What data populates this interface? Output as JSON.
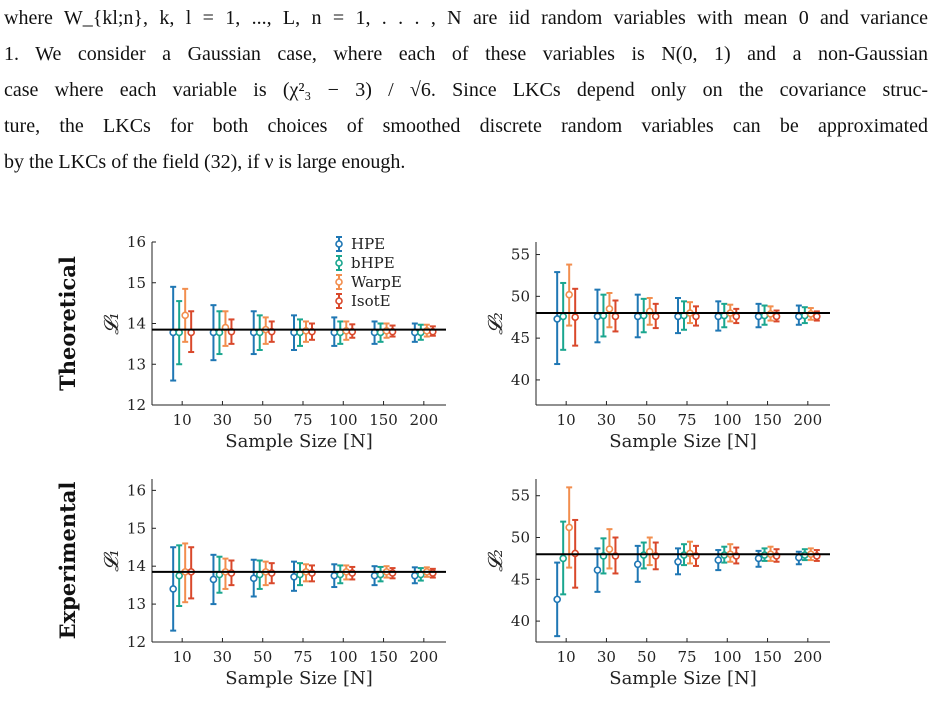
{
  "text": {
    "lines": [
      "where W_{kl;n}, k, l = 1, ..., L, n = 1, . . . , N are iid random variables with mean 0 and variance",
      "1. We consider a Gaussian case, where each of these variables is N(0, 1) and a non-Gaussian",
      "case where each variable is (χ²₃ − 3) / √6. Since LKCs depend only on the covariance struc-",
      "ture, the LKCs for both choices of smoothed discrete random variables can be approximated",
      "by the LKCs of the field (32), if ν is large enough."
    ]
  },
  "chart_data": [
    {
      "type": "errorbar",
      "row_label": "Theoretical",
      "ylabel": "𝓛₁",
      "xlabel": "Sample Size [N]",
      "categories": [
        "10",
        "30",
        "50",
        "75",
        "100",
        "150",
        "200"
      ],
      "ylim": [
        12,
        16
      ],
      "yticks": [
        12,
        13,
        14,
        15,
        16
      ],
      "reference_line": 13.85,
      "legend": "top-right",
      "series": [
        {
          "name": "HPE",
          "color": "#1f77b4",
          "mean": [
            13.78,
            13.78,
            13.78,
            13.78,
            13.78,
            13.78,
            13.78
          ],
          "lower": [
            12.6,
            13.1,
            13.25,
            13.35,
            13.45,
            13.5,
            13.55
          ],
          "upper": [
            14.9,
            14.45,
            14.3,
            14.2,
            14.15,
            14.05,
            14.0
          ]
        },
        {
          "name": "bHPE",
          "color": "#1aa68f",
          "mean": [
            13.78,
            13.78,
            13.78,
            13.78,
            13.78,
            13.78,
            13.78
          ],
          "lower": [
            13.0,
            13.25,
            13.35,
            13.45,
            13.5,
            13.55,
            13.6
          ],
          "upper": [
            14.55,
            14.3,
            14.2,
            14.1,
            14.05,
            14.0,
            13.97
          ]
        },
        {
          "name": "WarpE",
          "color": "#f28e4e",
          "mean": [
            14.2,
            13.9,
            13.85,
            13.82,
            13.82,
            13.82,
            13.82
          ],
          "lower": [
            13.55,
            13.45,
            13.5,
            13.55,
            13.6,
            13.65,
            13.68
          ],
          "upper": [
            14.85,
            14.3,
            14.15,
            14.05,
            14.05,
            14.0,
            13.97
          ]
        },
        {
          "name": "IsotE",
          "color": "#d9482b",
          "mean": [
            13.78,
            13.8,
            13.8,
            13.8,
            13.8,
            13.8,
            13.8
          ],
          "lower": [
            13.3,
            13.5,
            13.55,
            13.6,
            13.65,
            13.68,
            13.7
          ],
          "upper": [
            14.3,
            14.1,
            14.05,
            14.0,
            13.98,
            13.95,
            13.93
          ]
        }
      ]
    },
    {
      "type": "errorbar",
      "row_label": "",
      "ylabel": "𝓛₂",
      "xlabel": "Sample Size [N]",
      "categories": [
        "10",
        "30",
        "50",
        "75",
        "100",
        "150",
        "200"
      ],
      "ylim": [
        37,
        56.5
      ],
      "yticks": [
        40,
        45,
        50,
        55
      ],
      "reference_line": 48,
      "series": [
        {
          "name": "HPE",
          "color": "#1f77b4",
          "mean": [
            47.3,
            47.6,
            47.6,
            47.6,
            47.6,
            47.6,
            47.6
          ],
          "lower": [
            41.9,
            44.5,
            45.1,
            45.6,
            45.9,
            46.3,
            46.6
          ],
          "upper": [
            52.9,
            50.8,
            50.2,
            49.8,
            49.4,
            49.1,
            48.9
          ]
        },
        {
          "name": "bHPE",
          "color": "#1aa68f",
          "mean": [
            47.6,
            47.7,
            47.7,
            47.7,
            47.7,
            47.7,
            47.7
          ],
          "lower": [
            43.6,
            45.2,
            45.7,
            46.0,
            46.3,
            46.6,
            46.8
          ],
          "upper": [
            51.6,
            50.2,
            49.7,
            49.4,
            49.1,
            48.9,
            48.7
          ]
        },
        {
          "name": "WarpE",
          "color": "#f28e4e",
          "mean": [
            50.2,
            48.5,
            48.2,
            48.0,
            48.0,
            47.9,
            47.9
          ],
          "lower": [
            46.5,
            46.3,
            46.6,
            46.8,
            47.0,
            47.1,
            47.2
          ],
          "upper": [
            53.8,
            50.4,
            49.8,
            49.3,
            49.0,
            48.8,
            48.6
          ]
        },
        {
          "name": "IsotE",
          "color": "#d9482b",
          "mean": [
            47.5,
            47.6,
            47.6,
            47.6,
            47.6,
            47.6,
            47.6
          ],
          "lower": [
            44.1,
            45.8,
            46.2,
            46.5,
            46.8,
            47.0,
            47.1
          ],
          "upper": [
            50.9,
            49.5,
            49.1,
            48.8,
            48.5,
            48.3,
            48.2
          ]
        }
      ]
    },
    {
      "type": "errorbar",
      "row_label": "Experimental",
      "ylabel": "𝓛₁",
      "xlabel": "Sample Size [N]",
      "categories": [
        "10",
        "30",
        "50",
        "75",
        "100",
        "150",
        "200"
      ],
      "ylim": [
        12,
        16.3
      ],
      "yticks": [
        12,
        13,
        14,
        15,
        16
      ],
      "reference_line": 13.85,
      "series": [
        {
          "name": "HPE",
          "color": "#1f77b4",
          "mean": [
            13.4,
            13.65,
            13.68,
            13.72,
            13.75,
            13.75,
            13.75
          ],
          "lower": [
            12.3,
            13.0,
            13.2,
            13.35,
            13.45,
            13.5,
            13.55
          ],
          "upper": [
            14.5,
            14.3,
            14.17,
            14.12,
            14.05,
            14.0,
            13.97
          ]
        },
        {
          "name": "bHPE",
          "color": "#1aa68f",
          "mean": [
            13.75,
            13.78,
            13.78,
            13.78,
            13.78,
            13.78,
            13.78
          ],
          "lower": [
            12.95,
            13.3,
            13.4,
            13.5,
            13.55,
            13.6,
            13.62
          ],
          "upper": [
            14.55,
            14.25,
            14.15,
            14.08,
            14.02,
            13.98,
            13.95
          ]
        },
        {
          "name": "WarpE",
          "color": "#f28e4e",
          "mean": [
            13.85,
            13.85,
            13.85,
            13.85,
            13.85,
            13.85,
            13.85
          ],
          "lower": [
            13.05,
            13.4,
            13.5,
            13.6,
            13.65,
            13.7,
            13.72
          ],
          "upper": [
            14.6,
            14.2,
            14.12,
            14.05,
            14.02,
            14.0,
            13.97
          ]
        },
        {
          "name": "IsotE",
          "color": "#d9482b",
          "mean": [
            13.85,
            13.82,
            13.82,
            13.82,
            13.82,
            13.82,
            13.82
          ],
          "lower": [
            13.15,
            13.5,
            13.55,
            13.6,
            13.65,
            13.68,
            13.7
          ],
          "upper": [
            14.5,
            14.15,
            14.08,
            14.02,
            13.98,
            13.95,
            13.93
          ]
        }
      ]
    },
    {
      "type": "errorbar",
      "row_label": "",
      "ylabel": "𝓛₂",
      "xlabel": "Sample Size [N]",
      "categories": [
        "10",
        "30",
        "50",
        "75",
        "100",
        "150",
        "200"
      ],
      "ylim": [
        37.5,
        57
      ],
      "yticks": [
        40,
        45,
        50,
        55
      ],
      "reference_line": 48,
      "series": [
        {
          "name": "HPE",
          "color": "#1f77b4",
          "mean": [
            42.6,
            46.1,
            46.8,
            47.1,
            47.3,
            47.5,
            47.6
          ],
          "lower": [
            38.2,
            43.5,
            44.7,
            45.6,
            46.1,
            46.5,
            46.8
          ],
          "upper": [
            47.0,
            48.7,
            49.0,
            48.7,
            48.5,
            48.4,
            48.3
          ]
        },
        {
          "name": "bHPE",
          "color": "#1aa68f",
          "mean": [
            47.5,
            47.8,
            47.9,
            47.9,
            47.9,
            47.9,
            47.9
          ],
          "lower": [
            43.2,
            45.7,
            46.3,
            46.7,
            47.0,
            47.2,
            47.3
          ],
          "upper": [
            51.9,
            49.9,
            49.4,
            49.2,
            48.9,
            48.7,
            48.6
          ]
        },
        {
          "name": "WarpE",
          "color": "#f28e4e",
          "mean": [
            51.2,
            48.6,
            48.3,
            48.1,
            48.0,
            48.0,
            48.0
          ],
          "lower": [
            46.4,
            46.3,
            46.7,
            46.9,
            47.1,
            47.2,
            47.3
          ],
          "upper": [
            56.0,
            51.0,
            50.0,
            49.5,
            49.2,
            48.9,
            48.7
          ]
        },
        {
          "name": "IsotE",
          "color": "#d9482b",
          "mean": [
            48.1,
            47.8,
            47.8,
            47.8,
            47.8,
            47.8,
            47.8
          ],
          "lower": [
            44.0,
            45.7,
            46.2,
            46.6,
            46.9,
            47.1,
            47.2
          ],
          "upper": [
            52.1,
            50.0,
            49.4,
            49.0,
            48.8,
            48.6,
            48.5
          ]
        }
      ]
    }
  ]
}
